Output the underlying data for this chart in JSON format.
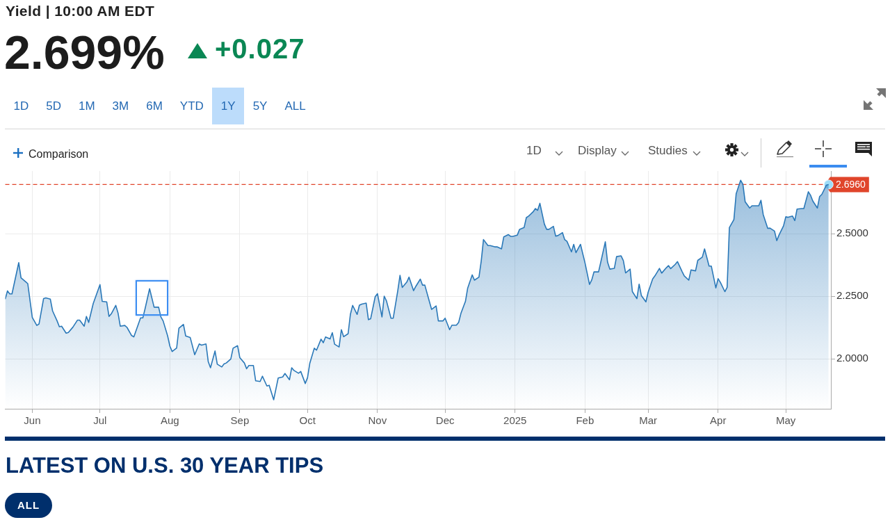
{
  "chart_data": {
    "type": "area",
    "title": "Yield | 10:00 AM EDT",
    "subtitle": "2.699%",
    "annotations": [
      "+0.027",
      "1D",
      "5D",
      "1M",
      "3M",
      "6M",
      "YTD",
      "1Y",
      "5Y",
      "ALL",
      "Comparison",
      "1D",
      "Display",
      "Studies",
      "LATEST ON U.S. 30 YEAR TIPS",
      "ALL"
    ],
    "x": [
      "2024-05-20",
      "2024-05-21",
      "2024-05-22",
      "2024-05-23",
      "2024-05-26",
      "2024-05-27",
      "2024-05-29",
      "2024-05-30",
      "2024-06-01",
      "2024-06-03",
      "2024-06-04",
      "2024-06-06",
      "2024-06-07",
      "2024-06-09",
      "2024-06-10",
      "2024-06-12",
      "2024-06-13",
      "2024-06-14",
      "2024-06-16",
      "2024-06-17",
      "2024-06-19",
      "2024-06-21",
      "2024-06-22",
      "2024-06-24",
      "2024-06-25",
      "2024-06-26",
      "2024-06-28",
      "2024-07-01",
      "2024-07-02",
      "2024-07-04",
      "2024-07-05",
      "2024-07-06",
      "2024-07-08",
      "2024-07-09",
      "2024-07-10",
      "2024-07-12",
      "2024-07-13",
      "2024-07-15",
      "2024-07-16",
      "2024-07-19",
      "2024-07-20",
      "2024-07-21",
      "2024-07-23",
      "2024-07-25",
      "2024-07-27",
      "2024-07-28",
      "2024-07-29",
      "2024-07-31",
      "2024-08-01",
      "2024-08-02",
      "2024-08-04",
      "2024-08-05",
      "2024-08-07",
      "2024-08-08",
      "2024-08-10",
      "2024-08-12",
      "2024-08-14",
      "2024-08-15",
      "2024-08-17",
      "2024-08-18",
      "2024-08-19",
      "2024-08-21",
      "2024-08-22",
      "2024-08-24",
      "2024-08-25",
      "2024-08-26",
      "2024-08-28",
      "2024-08-29",
      "2024-08-31",
      "2024-09-01",
      "2024-09-03",
      "2024-09-04",
      "2024-09-05",
      "2024-09-07",
      "2024-09-08",
      "2024-09-10",
      "2024-09-11",
      "2024-09-13",
      "2024-09-14",
      "2024-09-16",
      "2024-09-18",
      "2024-09-20",
      "2024-09-21",
      "2024-09-23",
      "2024-09-24",
      "2024-09-25",
      "2024-09-27",
      "2024-09-28",
      "2024-09-30",
      "2024-10-01",
      "2024-10-02",
      "2024-10-04",
      "2024-10-05",
      "2024-10-07",
      "2024-10-08",
      "2024-10-09",
      "2024-10-11",
      "2024-10-12",
      "2024-10-13",
      "2024-10-15",
      "2024-10-16",
      "2024-10-17",
      "2024-10-19",
      "2024-10-20",
      "2024-10-21",
      "2024-10-23",
      "2024-10-24",
      "2024-10-25",
      "2024-10-27",
      "2024-10-28",
      "2024-10-29",
      "2024-10-31",
      "2024-11-01",
      "2024-11-03",
      "2024-11-04",
      "2024-11-05",
      "2024-11-07",
      "2024-11-08",
      "2024-11-10",
      "2024-11-11",
      "2024-11-12",
      "2024-11-14",
      "2024-11-15",
      "2024-11-17",
      "2024-11-18",
      "2024-11-20",
      "2024-11-21",
      "2024-11-22",
      "2024-11-24",
      "2024-11-25",
      "2024-11-27",
      "2024-11-28",
      "2024-11-30",
      "2024-12-01",
      "2024-12-03",
      "2024-12-04",
      "2024-12-06",
      "2024-12-07",
      "2024-12-08",
      "2024-12-10",
      "2024-12-11",
      "2024-12-13",
      "2024-12-14",
      "2024-12-16",
      "2024-12-17",
      "2024-12-18",
      "2024-12-20",
      "2024-12-21",
      "2024-12-23",
      "2024-12-24",
      "2024-12-26",
      "2024-12-27",
      "2024-12-29",
      "2024-12-30",
      "2024-12-31",
      "2025-01-02",
      "2025-01-03",
      "2025-01-05",
      "2025-01-06",
      "2025-01-07",
      "2025-01-09",
      "2025-01-10",
      "2025-01-11",
      "2025-01-12",
      "2025-01-14",
      "2025-01-15",
      "2025-01-16",
      "2025-01-18",
      "2025-01-19",
      "2025-01-20",
      "2025-01-22",
      "2025-01-23",
      "2025-01-24",
      "2025-01-26",
      "2025-01-27",
      "2025-01-28",
      "2025-01-30",
      "2025-02-01",
      "2025-02-03",
      "2025-02-04",
      "2025-02-05",
      "2025-02-07",
      "2025-02-08",
      "2025-02-10",
      "2025-02-11",
      "2025-02-12",
      "2025-02-14",
      "2025-02-15",
      "2025-02-17",
      "2025-02-18",
      "2025-02-19",
      "2025-02-21",
      "2025-02-22",
      "2025-02-24",
      "2025-02-25",
      "2025-02-26",
      "2025-02-28",
      "2025-03-01",
      "2025-03-03",
      "2025-03-04",
      "2025-03-06",
      "2025-03-07",
      "2025-03-09",
      "2025-03-10",
      "2025-03-11",
      "2025-03-13",
      "2025-03-14",
      "2025-03-16",
      "2025-03-17",
      "2025-03-19",
      "2025-03-20",
      "2025-03-22",
      "2025-03-23",
      "2025-03-25",
      "2025-03-26",
      "2025-03-28",
      "2025-03-29",
      "2025-03-31",
      "2025-04-01",
      "2025-04-02",
      "2025-04-04",
      "2025-04-05",
      "2025-04-06",
      "2025-04-08",
      "2025-04-09",
      "2025-04-11",
      "2025-04-12",
      "2025-04-13",
      "2025-04-15",
      "2025-04-16",
      "2025-04-17",
      "2025-04-19",
      "2025-04-20",
      "2025-04-21",
      "2025-04-23",
      "2025-04-24",
      "2025-04-26",
      "2025-04-27",
      "2025-04-28",
      "2025-04-30",
      "2025-05-01",
      "2025-05-02",
      "2025-05-04",
      "2025-05-05",
      "2025-05-06",
      "2025-05-08",
      "2025-05-09",
      "2025-05-11",
      "2025-05-12",
      "2025-05-13",
      "2025-05-15",
      "2025-05-16",
      "2025-05-17",
      "2025-05-19",
      "2025-05-20"
    ],
    "series": [
      {
        "color": "#2a78b8",
        "values": [
          2.238,
          2.271,
          2.259,
          2.259,
          2.384,
          2.323,
          2.308,
          2.3,
          2.165,
          2.133,
          2.139,
          2.24,
          2.243,
          2.238,
          2.191,
          2.151,
          2.128,
          2.13,
          2.102,
          2.105,
          2.126,
          2.154,
          2.154,
          2.13,
          2.169,
          2.145,
          2.22,
          2.296,
          2.229,
          2.227,
          2.169,
          2.179,
          2.213,
          2.183,
          2.13,
          2.133,
          2.125,
          2.093,
          2.087,
          2.163,
          2.163,
          2.2,
          2.28,
          2.206,
          2.206,
          2.167,
          2.151,
          2.091,
          2.05,
          2.029,
          2.043,
          2.122,
          2.137,
          2.091,
          2.085,
          2.016,
          2.059,
          2.054,
          2.059,
          1.988,
          1.964,
          2.031,
          1.978,
          1.967,
          1.979,
          1.983,
          1.999,
          2.042,
          2.052,
          2.004,
          1.983,
          1.96,
          1.973,
          1.973,
          1.912,
          1.909,
          1.93,
          1.891,
          1.894,
          1.836,
          1.923,
          1.927,
          1.941,
          1.916,
          1.964,
          1.953,
          1.942,
          1.949,
          1.901,
          1.924,
          1.981,
          2.042,
          2.034,
          2.078,
          2.064,
          2.087,
          2.079,
          2.104,
          2.058,
          2.047,
          2.116,
          2.088,
          2.1,
          2.177,
          2.213,
          2.177,
          2.214,
          2.218,
          2.222,
          2.156,
          2.16,
          2.248,
          2.26,
          2.167,
          2.25,
          2.231,
          2.162,
          2.162,
          2.271,
          2.333,
          2.285,
          2.306,
          2.326,
          2.272,
          2.289,
          2.318,
          2.294,
          2.294,
          2.229,
          2.197,
          2.211,
          2.151,
          2.151,
          2.162,
          2.116,
          2.134,
          2.134,
          2.145,
          2.181,
          2.229,
          2.282,
          2.335,
          2.314,
          2.326,
          2.39,
          2.476,
          2.452,
          2.452,
          2.447,
          2.447,
          2.439,
          2.487,
          2.496,
          2.489,
          2.489,
          2.494,
          2.517,
          2.524,
          2.564,
          2.57,
          2.587,
          2.6,
          2.593,
          2.621,
          2.538,
          2.517,
          2.517,
          2.529,
          2.49,
          2.492,
          2.504,
          2.476,
          2.469,
          2.427,
          2.457,
          2.424,
          2.457,
          2.383,
          2.297,
          2.315,
          2.347,
          2.347,
          2.386,
          2.467,
          2.386,
          2.358,
          2.361,
          2.408,
          2.411,
          2.392,
          2.343,
          2.358,
          2.268,
          2.24,
          2.298,
          2.252,
          2.227,
          2.266,
          2.319,
          2.331,
          2.361,
          2.342,
          2.363,
          2.372,
          2.36,
          2.377,
          2.388,
          2.349,
          2.331,
          2.314,
          2.355,
          2.351,
          2.393,
          2.406,
          2.439,
          2.37,
          2.37,
          2.283,
          2.32,
          2.305,
          2.268,
          2.285,
          2.524,
          2.556,
          2.659,
          2.713,
          2.697,
          2.627,
          2.602,
          2.611,
          2.611,
          2.611,
          2.633,
          2.576,
          2.521,
          2.522,
          2.51,
          2.472,
          2.494,
          2.531,
          2.567,
          2.565,
          2.57,
          2.552,
          2.598,
          2.6,
          2.6,
          2.667,
          2.653,
          2.63,
          2.602,
          2.648,
          2.657,
          2.694,
          2.696
        ]
      },
      {
        "type": "scatter",
        "x": [
          "2025-05-20"
        ],
        "values": [
          2.696
        ],
        "color": "#9fdcf7",
        "marker": "circle"
      }
    ],
    "xlim": [
      "2024-05-20",
      "2025-05-21"
    ],
    "xticks": [
      {
        "value": "2024-06-01",
        "label": "Jun"
      },
      {
        "value": "2024-07-01",
        "label": "Jul"
      },
      {
        "value": "2024-08-01",
        "label": "Aug"
      },
      {
        "value": "2024-09-01",
        "label": "Sep"
      },
      {
        "value": "2024-10-01",
        "label": "Oct"
      },
      {
        "value": "2024-11-01",
        "label": "Nov"
      },
      {
        "value": "2024-12-01",
        "label": "Dec"
      },
      {
        "value": "2025-01-01",
        "label": "2025"
      },
      {
        "value": "2025-02-01",
        "label": "Feb"
      },
      {
        "value": "2025-03-01",
        "label": "Mar"
      },
      {
        "value": "2025-04-01",
        "label": "Apr"
      },
      {
        "value": "2025-05-01",
        "label": "May"
      }
    ],
    "ylim": [
      1.8,
      2.75
    ],
    "yticks": [
      {
        "value": 2,
        "label": "2.0000"
      },
      {
        "value": 2.25,
        "label": "2.2500"
      },
      {
        "value": 2.5,
        "label": "2.5000"
      }
    ],
    "ref_lines": [
      {
        "axis": "y",
        "value": 2.696,
        "label": "2.6960",
        "color": "#e0452b",
        "line_style": "dashed"
      }
    ],
    "grid": true
  }
}
